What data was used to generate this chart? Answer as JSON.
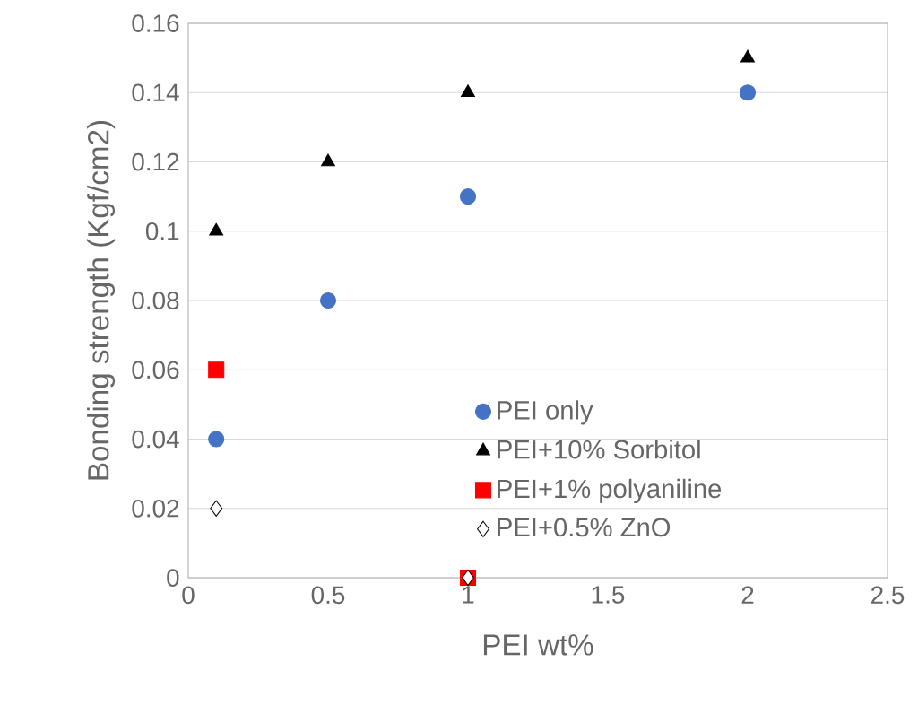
{
  "chart_data": {
    "type": "scatter",
    "xlabel": "PEI wt%",
    "ylabel": "Bonding strength (Kgf/cm2)",
    "xlim": [
      0,
      2.5
    ],
    "xticks": [
      0,
      0.5,
      1,
      1.5,
      2,
      2.5
    ],
    "ylim": [
      0,
      0.16
    ],
    "yticks": [
      0,
      0.02,
      0.04,
      0.06,
      0.08,
      0.1,
      0.12,
      0.14,
      0.16
    ],
    "grid": "y",
    "legend": "bottom right",
    "series": [
      {
        "name": "PEI only",
        "color": "#4472c4",
        "marker": "circle",
        "x": [
          0.1,
          0.5,
          1,
          2
        ],
        "values": [
          0.04,
          0.08,
          0.11,
          0.14
        ]
      },
      {
        "name": "PEI+10% Sorbitol",
        "color": "#000000",
        "marker": "triangle",
        "x": [
          0.1,
          0.5,
          1,
          2
        ],
        "values": [
          0.1,
          0.12,
          0.14,
          0.15
        ]
      },
      {
        "name": "PEI+1% polyaniline",
        "color": "#ff0000",
        "marker": "square",
        "x": [
          0.1,
          1
        ],
        "values": [
          0.06,
          0
        ]
      },
      {
        "name": "PEI+0.5% ZnO",
        "color": "#000000",
        "marker": "diamond",
        "x": [
          0.1,
          1
        ],
        "values": [
          0.02,
          0
        ]
      }
    ]
  }
}
